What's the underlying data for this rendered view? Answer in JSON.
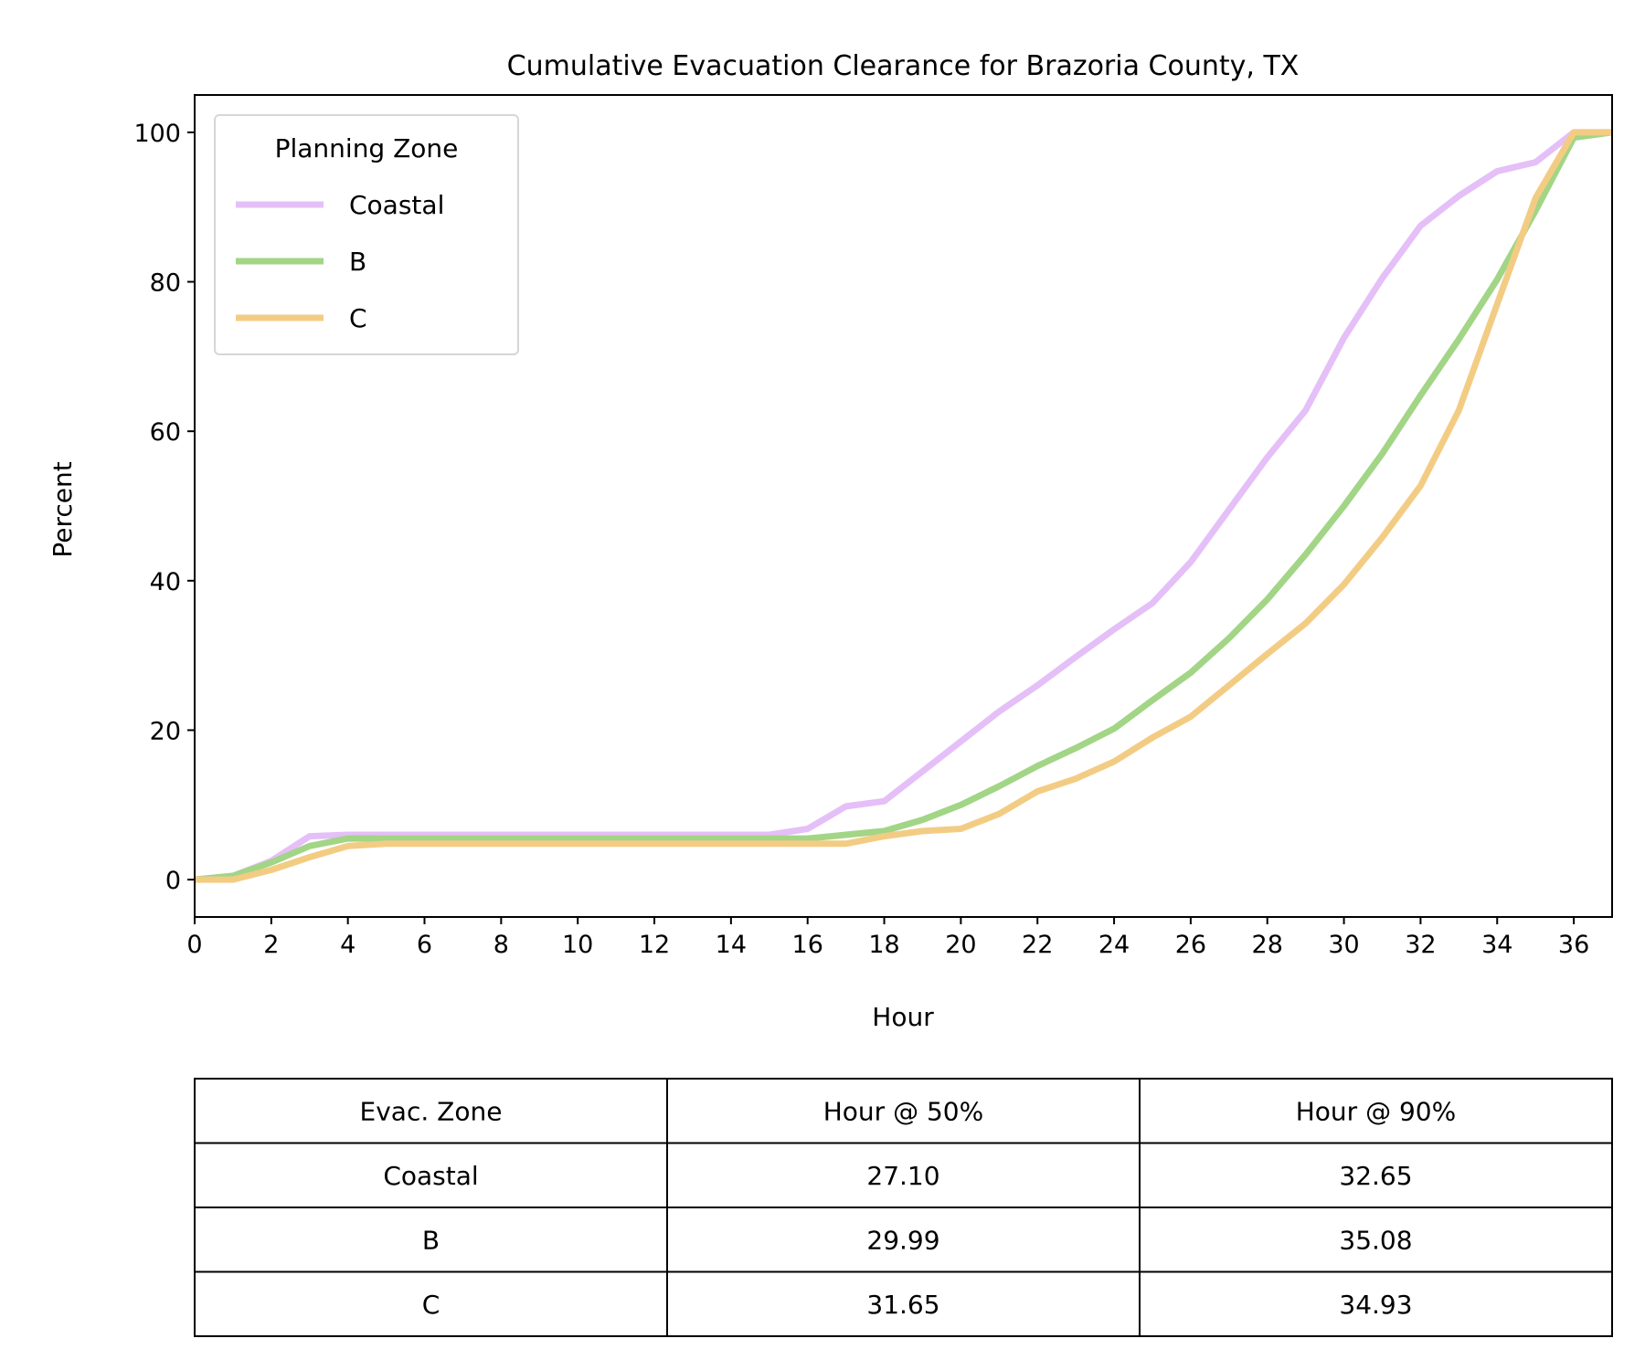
{
  "chart_data": {
    "type": "line",
    "title": "Cumulative Evacuation Clearance for Brazoria County, TX",
    "xlabel": "Hour",
    "ylabel": "Percent",
    "xlim": [
      0,
      37
    ],
    "ylim": [
      -5,
      105
    ],
    "xticks": [
      0,
      2,
      4,
      6,
      8,
      10,
      12,
      14,
      16,
      18,
      20,
      22,
      24,
      26,
      28,
      30,
      32,
      34,
      36
    ],
    "yticks": [
      0,
      20,
      40,
      60,
      80,
      100
    ],
    "grid": false,
    "legend": {
      "title": "Planning Zone",
      "placement": "top-left"
    },
    "x": [
      0,
      1,
      2,
      3,
      4,
      5,
      6,
      7,
      8,
      9,
      10,
      11,
      12,
      13,
      14,
      15,
      16,
      17,
      18,
      19,
      20,
      21,
      22,
      23,
      24,
      25,
      26,
      27,
      28,
      29,
      30,
      31,
      32,
      33,
      34,
      35,
      36,
      37
    ],
    "series": [
      {
        "name": "Coastal",
        "color": "#e5bff7",
        "values": [
          0,
          0.5,
          2.5,
          5.8,
          6,
          6,
          6,
          6,
          6,
          6,
          6,
          6,
          6,
          6,
          6,
          6,
          6.8,
          9.8,
          10.5,
          14.5,
          18.5,
          22.5,
          26,
          29.8,
          33.5,
          37,
          42.5,
          49.5,
          56.5,
          62.8,
          72.5,
          80.5,
          87.5,
          91.5,
          94.8,
          96,
          100,
          100
        ]
      },
      {
        "name": "B",
        "color": "#a2d586",
        "values": [
          0,
          0.5,
          2.3,
          4.5,
          5.5,
          5.5,
          5.5,
          5.5,
          5.5,
          5.5,
          5.5,
          5.5,
          5.5,
          5.5,
          5.5,
          5.5,
          5.5,
          6,
          6.5,
          8,
          10,
          12.5,
          15.2,
          17.6,
          20.2,
          24,
          27.7,
          32.3,
          37.5,
          43.5,
          50,
          57,
          64.8,
          72.3,
          80.3,
          89.5,
          99.3,
          100
        ]
      },
      {
        "name": "C",
        "color": "#f3cc84",
        "values": [
          0,
          0,
          1.3,
          3,
          4.5,
          4.8,
          4.8,
          4.8,
          4.8,
          4.8,
          4.8,
          4.8,
          4.8,
          4.8,
          4.8,
          4.8,
          4.8,
          4.8,
          5.8,
          6.5,
          6.8,
          8.8,
          11.8,
          13.5,
          15.8,
          19,
          21.8,
          26,
          30.2,
          34.3,
          39.5,
          45.8,
          52.7,
          62.8,
          77,
          91.2,
          100,
          100
        ]
      }
    ]
  },
  "table": {
    "headers": [
      "Evac. Zone",
      "Hour @ 50%",
      "Hour @ 90%"
    ],
    "rows": [
      [
        "Coastal",
        "27.10",
        "32.65"
      ],
      [
        "B",
        "29.99",
        "35.08"
      ],
      [
        "C",
        "31.65",
        "34.93"
      ]
    ]
  }
}
